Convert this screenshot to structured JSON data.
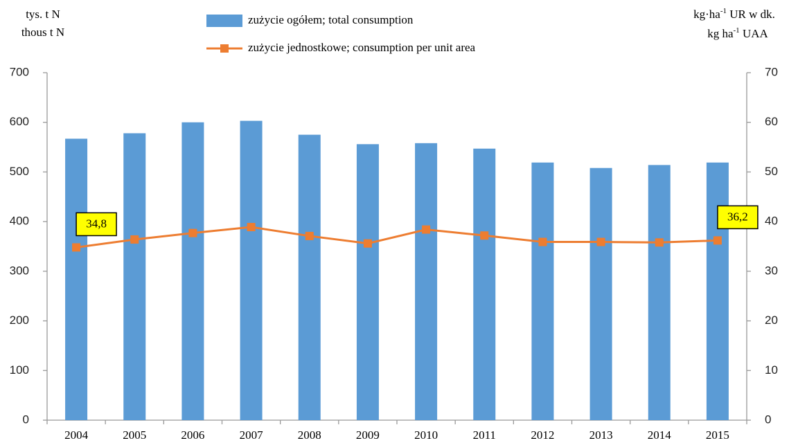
{
  "chart_data": {
    "type": "bar-line",
    "y_label": [
      "tys. t N",
      "thous t N"
    ],
    "y2_label": [
      [
        "kg·ha",
        "-1",
        " UR w dk."
      ],
      [
        "kg ha",
        "-1",
        " UAA"
      ]
    ],
    "categories": [
      "2004",
      "2005",
      "2006",
      "2007",
      "2008",
      "2009",
      "2010",
      "2011",
      "2012",
      "2013",
      "2014",
      "2015"
    ],
    "series": [
      {
        "name": "zużycie ogółem; total consumption",
        "type": "bar",
        "color": "#5b9bd5",
        "values": [
          567,
          578,
          600,
          603,
          575,
          556,
          558,
          547,
          519,
          508,
          514,
          519
        ]
      },
      {
        "name": "zużycie jednostkowe; consumption per unit area",
        "type": "line",
        "axis": "y2",
        "color": "#ed7d31",
        "values": [
          34.8,
          36.4,
          37.7,
          38.9,
          37.1,
          35.6,
          38.4,
          37.2,
          35.9,
          35.9,
          35.8,
          36.2
        ],
        "value_labels": [
          "34,8",
          null,
          null,
          null,
          null,
          null,
          null,
          null,
          null,
          null,
          null,
          "36,2"
        ]
      }
    ],
    "ylim": [
      0,
      700
    ],
    "yticks": [
      0,
      100,
      200,
      300,
      400,
      500,
      600,
      700
    ],
    "y2lim": [
      0,
      70
    ],
    "y2ticks": [
      0,
      10,
      20,
      30,
      40,
      50,
      60,
      70
    ],
    "legend": "top",
    "grid": false
  }
}
